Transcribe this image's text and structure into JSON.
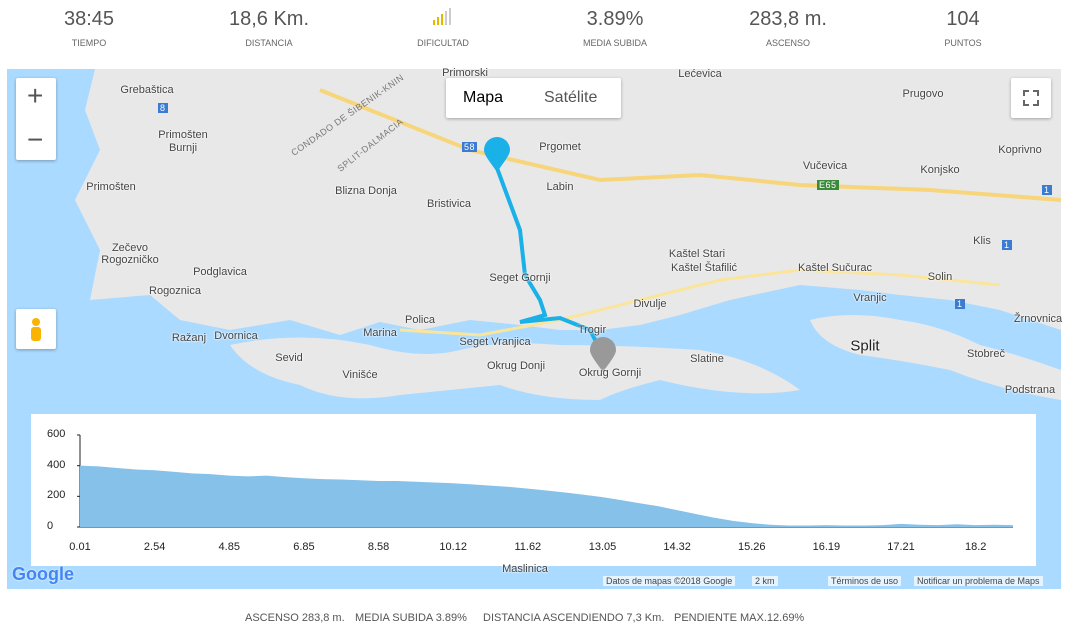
{
  "header": {
    "stats": [
      {
        "value": "38:45",
        "label": "TIEMPO"
      },
      {
        "value": "18,6 Km.",
        "label": "DISTANCIA"
      },
      {
        "value": null,
        "label": "DIFICULTAD"
      },
      {
        "value": "3.89%",
        "label": "MEDIA SUBIDA"
      },
      {
        "value": "283,8 m.",
        "label": "ASCENSO"
      },
      {
        "value": "104",
        "label": "PUNTOS"
      }
    ]
  },
  "map": {
    "zoom_in": "+",
    "zoom_out": "−",
    "map_types": [
      "Mapa",
      "Satélite"
    ],
    "places": [
      "Primorski",
      "Lećevica",
      "Grebaštica",
      "Prugovo",
      "Primošten",
      "Burnji",
      "Prgomet",
      "Koprivno",
      "Vučevica",
      "Konjsko",
      "Primošten",
      "Blizna Donja",
      "Labin",
      "Bristivica",
      "Klis",
      "Zečevo",
      "Rogozničko",
      "Kaštel Stari",
      "Kaštel Štafilić",
      "Kaštel Sučurac",
      "Podglavica",
      "Seget Gornji",
      "Solin",
      "Rogoznica",
      "Divulje",
      "Vranjic",
      "Žrnovnica",
      "Polica",
      "Ražanj",
      "Dvornica",
      "Marina",
      "Seget Vranjica",
      "Trogir",
      "Split",
      "Sevid",
      "Slatine",
      "Stobreč",
      "Okrug Donji",
      "Okrug Gornji",
      "Vinišće",
      "Podstrana",
      "Maslinica"
    ],
    "roads": [
      "CONDADO DE ŠIBENIK-KNIN",
      "SPLIT-DALMACIA",
      "58",
      "E65",
      "8",
      "1",
      "1",
      "1"
    ],
    "logo": "Google",
    "attribution": [
      "Datos de mapas ©2018 Google",
      "2 km",
      "Términos de uso",
      "Notificar un problema de Maps"
    ]
  },
  "elevation_chart": {
    "type": "area",
    "color": "#86c1ea",
    "ylim": [
      0,
      600
    ],
    "yticks": [
      0,
      200,
      400,
      600
    ],
    "xtick_labels": [
      "0.01",
      "2.54",
      "4.85",
      "6.85",
      "8.58",
      "10.12",
      "11.62",
      "13.05",
      "14.32",
      "15.26",
      "16.19",
      "17.21",
      "18.2"
    ],
    "values": [
      400,
      395,
      385,
      375,
      370,
      360,
      350,
      345,
      335,
      330,
      335,
      325,
      318,
      312,
      310,
      305,
      300,
      300,
      295,
      290,
      285,
      278,
      270,
      262,
      250,
      238,
      225,
      210,
      195,
      175,
      155,
      135,
      110,
      85,
      60,
      40,
      25,
      15,
      10,
      10,
      12,
      10,
      10,
      12,
      20,
      15,
      12,
      18,
      12,
      15,
      12
    ]
  },
  "footer": [
    "ASCENSO 283,8 m.",
    "MEDIA SUBIDA 3.89%",
    "DISTANCIA ASCENDIENDO 7,3 Km.",
    "PENDIENTE MAX.12.69%"
  ]
}
